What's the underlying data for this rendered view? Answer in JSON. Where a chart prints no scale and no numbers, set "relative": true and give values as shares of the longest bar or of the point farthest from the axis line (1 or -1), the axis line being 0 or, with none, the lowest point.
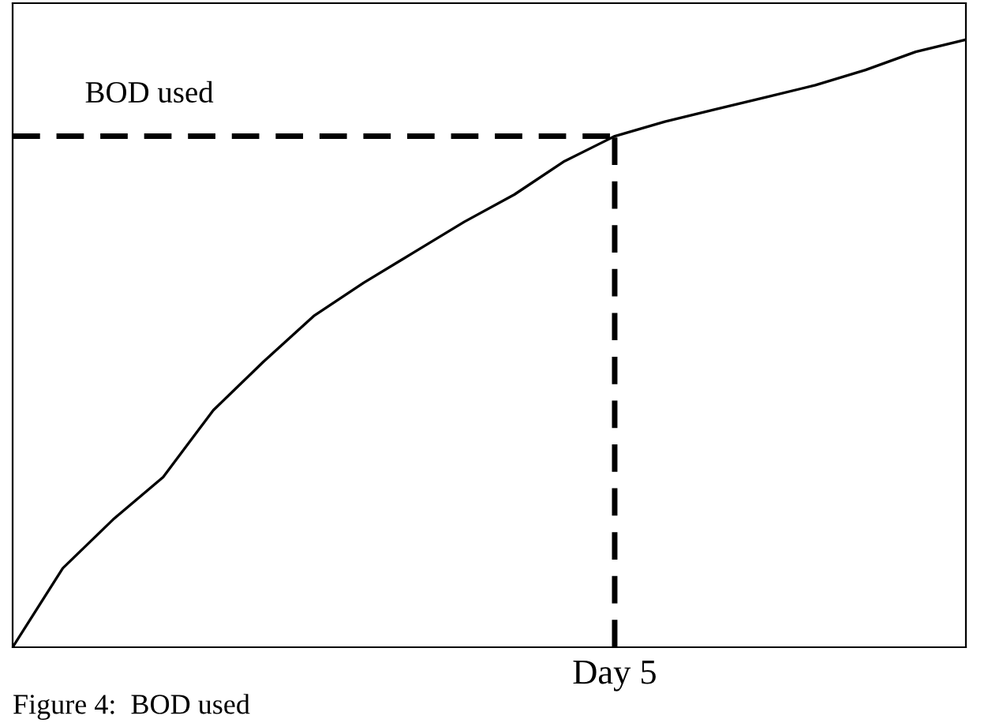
{
  "chart_data": {
    "type": "line",
    "relative": true,
    "categories": [
      null,
      null,
      null,
      null,
      null,
      null,
      null,
      null,
      null,
      null,
      null,
      null,
      null,
      null,
      null,
      null,
      null,
      null,
      null,
      null
    ],
    "series": [
      {
        "color": "#000000",
        "line_style": "solid",
        "values": [
          0,
          0.13,
          0.21,
          0.28,
          0.39,
          0.47,
          0.545,
          0.6,
          0.65,
          0.7,
          0.745,
          0.8,
          0.841,
          0.865,
          0.885,
          0.905,
          0.925,
          0.95,
          0.98,
          1.0
        ]
      }
    ],
    "ref_lines": [
      {
        "axis": "y",
        "value": 0.841,
        "label": "BOD used",
        "color": "#000000",
        "line_style": "dashed"
      }
    ],
    "annotations": [
      "Day 5",
      "Figure 4:  BOD used"
    ]
  }
}
